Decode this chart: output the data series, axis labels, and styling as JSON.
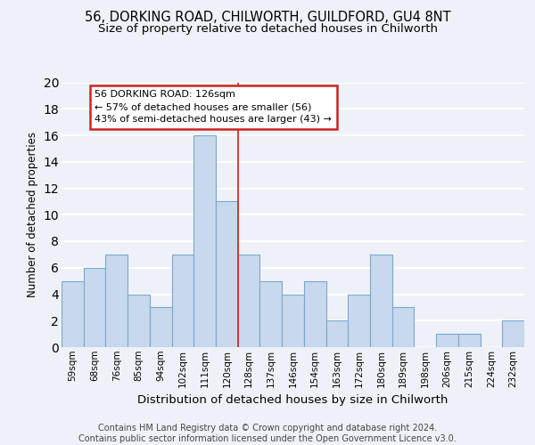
{
  "title_line1": "56, DORKING ROAD, CHILWORTH, GUILDFORD, GU4 8NT",
  "title_line2": "Size of property relative to detached houses in Chilworth",
  "xlabel": "Distribution of detached houses by size in Chilworth",
  "ylabel": "Number of detached properties",
  "categories": [
    "59sqm",
    "68sqm",
    "76sqm",
    "85sqm",
    "94sqm",
    "102sqm",
    "111sqm",
    "120sqm",
    "128sqm",
    "137sqm",
    "146sqm",
    "154sqm",
    "163sqm",
    "172sqm",
    "180sqm",
    "189sqm",
    "198sqm",
    "206sqm",
    "215sqm",
    "224sqm",
    "232sqm"
  ],
  "values": [
    5,
    6,
    7,
    4,
    3,
    7,
    16,
    11,
    7,
    5,
    4,
    5,
    2,
    4,
    7,
    3,
    0,
    1,
    1,
    0,
    2
  ],
  "bar_color": "#c8d8ed",
  "bar_edge_color": "#7aa8cc",
  "vline_position": 7.5,
  "vline_color": "#cc2222",
  "annotation_text": "56 DORKING ROAD: 126sqm\n← 57% of detached houses are smaller (56)\n43% of semi-detached houses are larger (43) →",
  "annotation_box_facecolor": "#ffffff",
  "annotation_box_edgecolor": "#cc2222",
  "ylim": [
    0,
    20
  ],
  "yticks": [
    0,
    2,
    4,
    6,
    8,
    10,
    12,
    14,
    16,
    18,
    20
  ],
  "footer_line1": "Contains HM Land Registry data © Crown copyright and database right 2024.",
  "footer_line2": "Contains public sector information licensed under the Open Government Licence v3.0.",
  "bg_color": "#eef2f8",
  "plot_bg_color": "#eef2f8",
  "grid_color": "#ffffff",
  "title_fontsize": 10.5,
  "subtitle_fontsize": 9.5,
  "ylabel_fontsize": 8.5,
  "xlabel_fontsize": 9.5,
  "tick_fontsize": 7.5,
  "annotation_fontsize": 8,
  "footer_fontsize": 7
}
